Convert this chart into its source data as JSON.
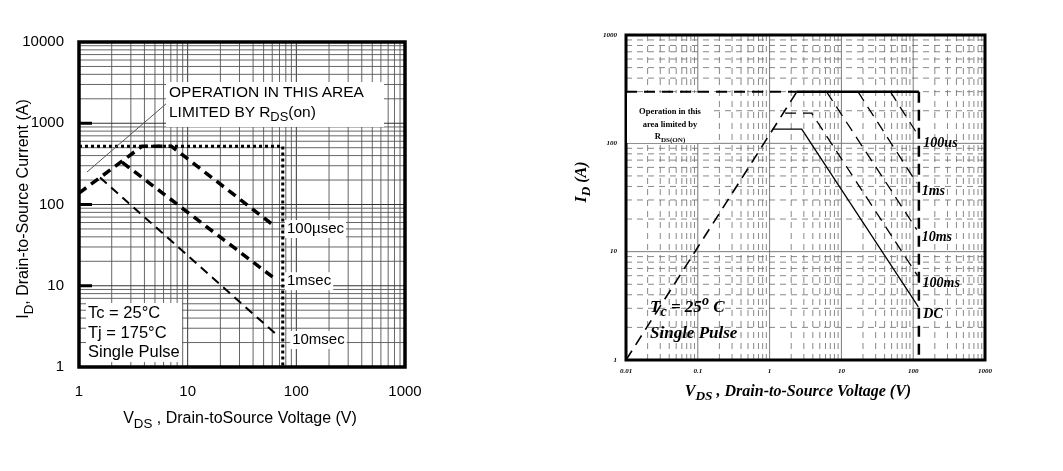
{
  "chart_data": [
    {
      "type": "line",
      "xlabel": "V$_{DS}$ , Drain-toSource Voltage (V)",
      "ylabel": "I$_{D}$, Drain-to-Source Current (A)",
      "log": "xy",
      "xlim": [
        1,
        1000
      ],
      "ylim": [
        1,
        10000
      ],
      "xticks": [
        1,
        {
          "value": 2,
          "label": null
        },
        {
          "value": 3,
          "label": null
        },
        {
          "value": 4,
          "label": null
        },
        {
          "value": 5,
          "label": null
        },
        {
          "value": 6,
          "label": null
        },
        {
          "value": 7,
          "label": null
        },
        {
          "value": 8,
          "label": null
        },
        {
          "value": 9,
          "label": null
        },
        10,
        {
          "value": 20,
          "label": null
        },
        {
          "value": 30,
          "label": null
        },
        {
          "value": 40,
          "label": null
        },
        {
          "value": 50,
          "label": null
        },
        {
          "value": 60,
          "label": null
        },
        {
          "value": 70,
          "label": null
        },
        {
          "value": 80,
          "label": null
        },
        {
          "value": 90,
          "label": null
        },
        100,
        {
          "value": 200,
          "label": null
        },
        {
          "value": 300,
          "label": null
        },
        {
          "value": 400,
          "label": null
        },
        {
          "value": 500,
          "label": null
        },
        {
          "value": 600,
          "label": null
        },
        {
          "value": 700,
          "label": null
        },
        {
          "value": 800,
          "label": null
        },
        {
          "value": 900,
          "label": null
        },
        1000
      ],
      "yticks": [
        1,
        {
          "value": 2,
          "label": null
        },
        {
          "value": 3,
          "label": null
        },
        {
          "value": 4,
          "label": null
        },
        {
          "value": 5,
          "label": null
        },
        {
          "value": 6,
          "label": null
        },
        {
          "value": 7,
          "label": null
        },
        {
          "value": 8,
          "label": null
        },
        {
          "value": 9,
          "label": null
        },
        10,
        {
          "value": 20,
          "label": null
        },
        {
          "value": 30,
          "label": null
        },
        {
          "value": 40,
          "label": null
        },
        {
          "value": 50,
          "label": null
        },
        {
          "value": 60,
          "label": null
        },
        {
          "value": 70,
          "label": null
        },
        {
          "value": 80,
          "label": null
        },
        {
          "value": 90,
          "label": null
        },
        100,
        {
          "value": 200,
          "label": null
        },
        {
          "value": 300,
          "label": null
        },
        {
          "value": 400,
          "label": null
        },
        {
          "value": 500,
          "label": null
        },
        {
          "value": 600,
          "label": null
        },
        {
          "value": 700,
          "label": null
        },
        {
          "value": 800,
          "label": null
        },
        {
          "value": 900,
          "label": null
        },
        1000,
        {
          "value": 2000,
          "label": null
        },
        {
          "value": 3000,
          "label": null
        },
        {
          "value": 4000,
          "label": null
        },
        {
          "value": 5000,
          "label": null
        },
        {
          "value": 6000,
          "label": null
        },
        {
          "value": 7000,
          "label": null
        },
        {
          "value": 8000,
          "label": null
        },
        {
          "value": 9000,
          "label": null
        },
        10000
      ],
      "grid": true,
      "marker": "none",
      "annotations": [
        "OPERATION IN THIS AREA LIMITED BY R$_{DS}$(on)",
        "Tc = 25°C",
        "Tj = 175°C",
        "Single Pulse"
      ],
      "series": [
        {
          "color": "#000000",
          "line_style": "dotted",
          "x": [
            1,
            75,
            75
          ],
          "values": [
            520,
            520,
            1
          ]
        },
        {
          "name": "100µsec",
          "color": "#000000",
          "line_style": "dashed",
          "x": [
            1,
            3.8,
            7.1,
            61
          ],
          "values": [
            138,
            520,
            520,
            56
          ]
        },
        {
          "name": "1msec",
          "color": "#000000",
          "line_style": "dashed",
          "x": [
            2.5,
            61
          ],
          "values": [
            330,
            12.7
          ]
        },
        {
          "name": "10msec",
          "color": "#000000",
          "line_style": "dashed",
          "x": [
            1.56,
            68
          ],
          "values": [
            215,
            2.4
          ]
        }
      ]
    },
    {
      "type": "line",
      "xlabel": "V$_{DS}$ , Drain-to-Source Voltage (V)",
      "ylabel": "I$_{D}$ (A)",
      "log": "xy",
      "xlim": [
        0.01,
        1000
      ],
      "ylim": [
        1,
        1000
      ],
      "xticks": [
        0.01,
        {
          "value": 0.02,
          "label": null
        },
        {
          "value": 0.03,
          "label": null
        },
        {
          "value": 0.04,
          "label": null
        },
        {
          "value": 0.05,
          "label": null
        },
        {
          "value": 0.06,
          "label": null
        },
        {
          "value": 0.07,
          "label": null
        },
        {
          "value": 0.08,
          "label": null
        },
        {
          "value": 0.09,
          "label": null
        },
        0.1,
        {
          "value": 0.2,
          "label": null
        },
        {
          "value": 0.3,
          "label": null
        },
        {
          "value": 0.4,
          "label": null
        },
        {
          "value": 0.5,
          "label": null
        },
        {
          "value": 0.6,
          "label": null
        },
        {
          "value": 0.7,
          "label": null
        },
        {
          "value": 0.8,
          "label": null
        },
        {
          "value": 0.9,
          "label": null
        },
        1,
        {
          "value": 2,
          "label": null
        },
        {
          "value": 3,
          "label": null
        },
        {
          "value": 4,
          "label": null
        },
        {
          "value": 5,
          "label": null
        },
        {
          "value": 6,
          "label": null
        },
        {
          "value": 7,
          "label": null
        },
        {
          "value": 8,
          "label": null
        },
        {
          "value": 9,
          "label": null
        },
        10,
        {
          "value": 20,
          "label": null
        },
        {
          "value": 30,
          "label": null
        },
        {
          "value": 40,
          "label": null
        },
        {
          "value": 50,
          "label": null
        },
        {
          "value": 60,
          "label": null
        },
        {
          "value": 70,
          "label": null
        },
        {
          "value": 80,
          "label": null
        },
        {
          "value": 90,
          "label": null
        },
        100,
        {
          "value": 200,
          "label": null
        },
        {
          "value": 300,
          "label": null
        },
        {
          "value": 400,
          "label": null
        },
        {
          "value": 500,
          "label": null
        },
        {
          "value": 600,
          "label": null
        },
        {
          "value": 700,
          "label": null
        },
        {
          "value": 800,
          "label": null
        },
        {
          "value": 900,
          "label": null
        },
        1000
      ],
      "yticks": [
        1,
        {
          "value": 2,
          "label": null
        },
        {
          "value": 3,
          "label": null
        },
        {
          "value": 4,
          "label": null
        },
        {
          "value": 5,
          "label": null
        },
        {
          "value": 6,
          "label": null
        },
        {
          "value": 7,
          "label": null
        },
        {
          "value": 8,
          "label": null
        },
        {
          "value": 9,
          "label": null
        },
        10,
        {
          "value": 20,
          "label": null
        },
        {
          "value": 30,
          "label": null
        },
        {
          "value": 40,
          "label": null
        },
        {
          "value": 50,
          "label": null
        },
        {
          "value": 60,
          "label": null
        },
        {
          "value": 70,
          "label": null
        },
        {
          "value": 80,
          "label": null
        },
        {
          "value": 90,
          "label": null
        },
        100,
        {
          "value": 200,
          "label": null
        },
        {
          "value": 300,
          "label": null
        },
        {
          "value": 400,
          "label": null
        },
        {
          "value": 500,
          "label": null
        },
        {
          "value": 600,
          "label": null
        },
        {
          "value": 700,
          "label": null
        },
        {
          "value": 800,
          "label": null
        },
        {
          "value": 900,
          "label": null
        },
        1000
      ],
      "grid": true,
      "marker": "none",
      "annotations": [
        "Operation in this area limited by R$_{DS(ON)}$",
        "T$_{c}$ = 25$^{o}$ C",
        "Single Pulse"
      ],
      "series": [
        {
          "color": "#000000",
          "line_style": "dashed",
          "x": [
            0.01,
            2.4
          ],
          "values": [
            1,
            300
          ]
        },
        {
          "color": "#000000",
          "line_style": "dashed",
          "x": [
            0.01,
            2.4
          ],
          "values": [
            300,
            300
          ]
        },
        {
          "color": "#000000",
          "line_style": "solid",
          "x": [
            2.4,
            120
          ],
          "values": [
            300,
            300
          ]
        },
        {
          "color": "#000000",
          "line_style": "dashed",
          "x": [
            120,
            120
          ],
          "values": [
            300,
            1
          ]
        },
        {
          "name": "100us",
          "color": "#000000",
          "line_style": "dashed",
          "x": [
            48,
            118
          ],
          "values": [
            300,
            118
          ]
        },
        {
          "name": "1ms",
          "color": "#000000",
          "line_style": "dashed",
          "x": [
            17,
            112
          ],
          "values": [
            300,
            43
          ]
        },
        {
          "name": "10ms",
          "color": "#000000",
          "line_style": "dashed",
          "x": [
            6.2,
            112
          ],
          "values": [
            300,
            16
          ]
        },
        {
          "name": "100ms",
          "color": "#000000",
          "line_style": "dashed",
          "x": [
            1.64,
            3.85,
            115
          ],
          "values": [
            190,
            190,
            6
          ]
        },
        {
          "name": "DC",
          "color": "#000000",
          "line_style": "solid",
          "x": [
            1.1,
            2.8,
            118
          ],
          "values": [
            135,
            135,
            3.1
          ]
        }
      ]
    }
  ]
}
